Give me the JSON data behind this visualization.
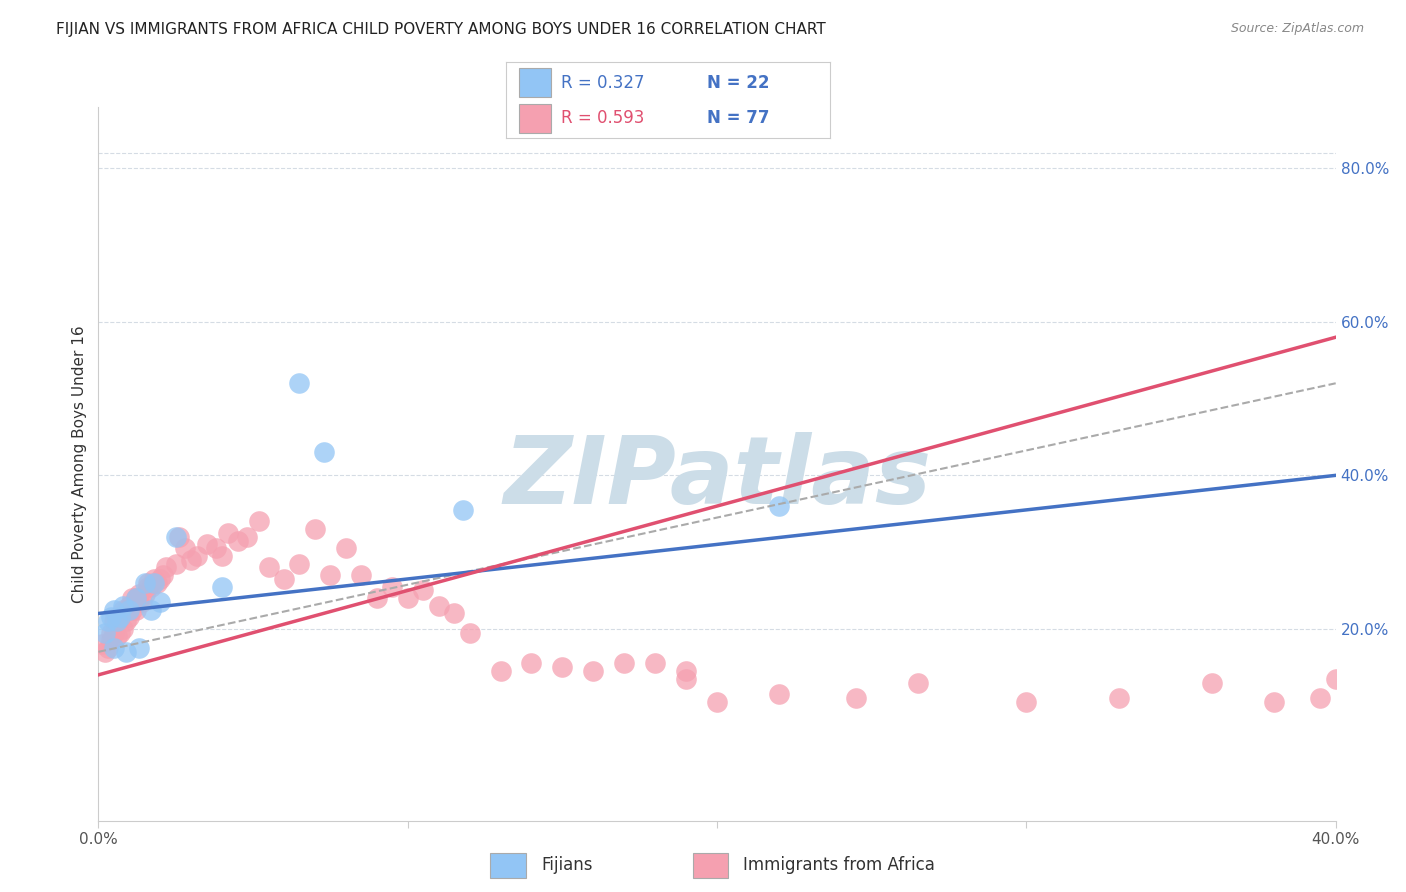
{
  "title": "FIJIAN VS IMMIGRANTS FROM AFRICA CHILD POVERTY AMONG BOYS UNDER 16 CORRELATION CHART",
  "source": "Source: ZipAtlas.com",
  "ylabel": "Child Poverty Among Boys Under 16",
  "xlim": [
    0.0,
    0.4
  ],
  "ylim": [
    -0.05,
    0.88
  ],
  "legend_blue_r": "R = 0.327",
  "legend_blue_n": "N = 22",
  "legend_pink_r": "R = 0.593",
  "legend_pink_n": "N = 77",
  "fijian_color": "#92c5f5",
  "africa_color": "#f5a0b0",
  "fijian_line_color": "#4472c4",
  "africa_line_color": "#e05070",
  "fijian_x": [
    0.002,
    0.003,
    0.004,
    0.005,
    0.005,
    0.006,
    0.007,
    0.008,
    0.009,
    0.01,
    0.012,
    0.013,
    0.015,
    0.017,
    0.018,
    0.02,
    0.025,
    0.04,
    0.065,
    0.073,
    0.118,
    0.22
  ],
  "fijian_y": [
    0.195,
    0.21,
    0.215,
    0.225,
    0.175,
    0.21,
    0.215,
    0.23,
    0.17,
    0.225,
    0.24,
    0.175,
    0.26,
    0.225,
    0.26,
    0.235,
    0.32,
    0.255,
    0.52,
    0.43,
    0.355,
    0.36
  ],
  "africa_x": [
    0.001,
    0.002,
    0.003,
    0.004,
    0.004,
    0.005,
    0.005,
    0.006,
    0.006,
    0.007,
    0.007,
    0.008,
    0.008,
    0.009,
    0.009,
    0.01,
    0.01,
    0.011,
    0.011,
    0.012,
    0.012,
    0.013,
    0.013,
    0.014,
    0.015,
    0.016,
    0.016,
    0.017,
    0.018,
    0.019,
    0.02,
    0.021,
    0.022,
    0.025,
    0.026,
    0.028,
    0.03,
    0.032,
    0.035,
    0.038,
    0.04,
    0.042,
    0.045,
    0.048,
    0.052,
    0.055,
    0.06,
    0.065,
    0.07,
    0.075,
    0.08,
    0.085,
    0.09,
    0.095,
    0.1,
    0.105,
    0.11,
    0.115,
    0.12,
    0.13,
    0.14,
    0.15,
    0.16,
    0.17,
    0.18,
    0.19,
    0.19,
    0.2,
    0.22,
    0.245,
    0.265,
    0.3,
    0.33,
    0.36,
    0.38,
    0.395,
    0.4
  ],
  "africa_y": [
    0.18,
    0.17,
    0.175,
    0.185,
    0.195,
    0.195,
    0.21,
    0.19,
    0.215,
    0.195,
    0.215,
    0.2,
    0.225,
    0.21,
    0.225,
    0.215,
    0.23,
    0.225,
    0.24,
    0.225,
    0.24,
    0.235,
    0.245,
    0.235,
    0.245,
    0.255,
    0.26,
    0.255,
    0.265,
    0.26,
    0.265,
    0.27,
    0.28,
    0.285,
    0.32,
    0.305,
    0.29,
    0.295,
    0.31,
    0.305,
    0.295,
    0.325,
    0.315,
    0.32,
    0.34,
    0.28,
    0.265,
    0.285,
    0.33,
    0.27,
    0.305,
    0.27,
    0.24,
    0.255,
    0.24,
    0.25,
    0.23,
    0.22,
    0.195,
    0.145,
    0.155,
    0.15,
    0.145,
    0.155,
    0.155,
    0.145,
    0.135,
    0.105,
    0.115,
    0.11,
    0.13,
    0.105,
    0.11,
    0.13,
    0.105,
    0.11,
    0.135
  ],
  "watermark": "ZIPatlas",
  "watermark_color": "#ccdde8",
  "background_color": "#ffffff",
  "grid_color": "#d5dce4",
  "ytick_vals": [
    0.2,
    0.4,
    0.6,
    0.8
  ],
  "ytick_labels": [
    "20.0%",
    "40.0%",
    "60.0%",
    "80.0%"
  ],
  "xtick_vals": [
    0.0,
    0.1,
    0.2,
    0.3,
    0.4
  ],
  "xtick_labels": [
    "0.0%",
    "",
    "",
    "",
    "40.0%"
  ]
}
